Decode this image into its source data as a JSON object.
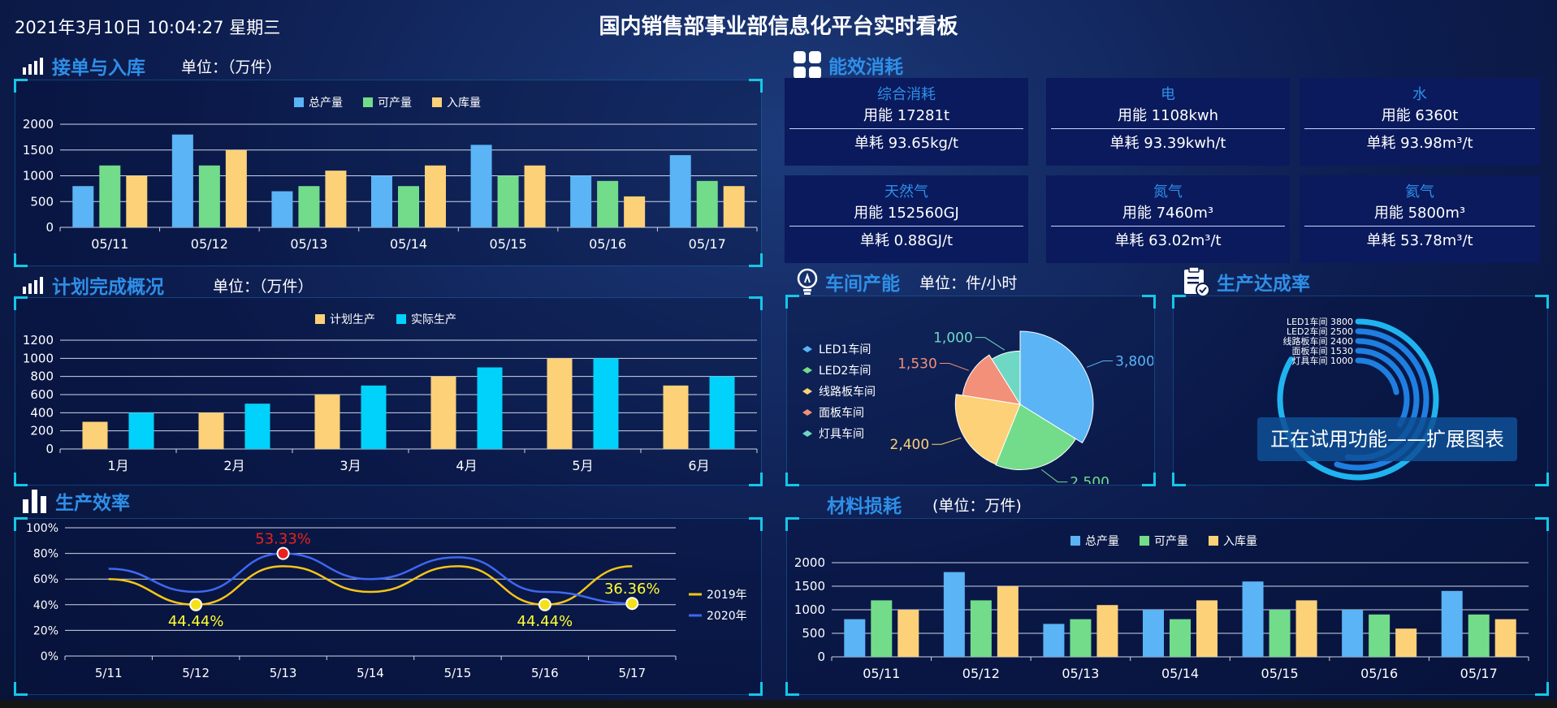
{
  "header": {
    "datetime": "2021年3月10日 10:04:27 星期三",
    "title": "国内销售部事业部信息化平台实时看板"
  },
  "sections": {
    "orders": {
      "title": "接单与入库",
      "unit": "单位：（万件）"
    },
    "energy": {
      "title": "能效消耗"
    },
    "plan": {
      "title": "计划完成概况",
      "unit": "单位：（万件）"
    },
    "workshop": {
      "title": "车间产能",
      "unit": "单位：件/小时"
    },
    "rate": {
      "title": "生产达成率"
    },
    "efficiency": {
      "title": "生产效率"
    },
    "material": {
      "title": "材料损耗",
      "unit": "(单位：万件)"
    }
  },
  "energy_cards": [
    {
      "name": "综合消耗",
      "usage": "用能 17281t",
      "per_unit": "单耗 93.65kg/t"
    },
    {
      "name": "电",
      "usage": "用能 1108kwh",
      "per_unit": "单耗 93.39kwh/t"
    },
    {
      "name": "水",
      "usage": "用能 6360t",
      "per_unit": "单耗 93.98m³/t"
    },
    {
      "name": "天然气",
      "usage": "用能 152560GJ",
      "per_unit": "单耗 0.88GJ/t"
    },
    {
      "name": "氮气",
      "usage": "用能 7460m³",
      "per_unit": "单耗 63.02m³/t"
    },
    {
      "name": "氦气",
      "usage": "用能 5800m³",
      "per_unit": "单耗 53.78m³/t"
    }
  ],
  "overlay": {
    "label": "正在试用功能——扩展图表"
  },
  "chart_data": [
    {
      "id": "orders",
      "type": "bar",
      "categories": [
        "05/11",
        "05/12",
        "05/13",
        "05/14",
        "05/15",
        "05/16",
        "05/17"
      ],
      "series": [
        {
          "name": "总产量",
          "color": "#5ab4f5",
          "values": [
            800,
            1800,
            700,
            1000,
            1600,
            1000,
            1400
          ]
        },
        {
          "name": "可产量",
          "color": "#72dc8a",
          "values": [
            1200,
            1200,
            800,
            800,
            1000,
            900,
            900
          ]
        },
        {
          "name": "入库量",
          "color": "#fcd178",
          "values": [
            1000,
            1500,
            1100,
            1200,
            1200,
            600,
            800
          ]
        }
      ],
      "yticks": [
        "0",
        "500",
        "1000",
        "1500",
        "2000"
      ],
      "ylim": [
        0,
        2000
      ]
    },
    {
      "id": "plan",
      "type": "bar",
      "categories": [
        "1月",
        "2月",
        "3月",
        "4月",
        "5月",
        "6月"
      ],
      "series": [
        {
          "name": "计划生产",
          "color": "#fcd178",
          "values": [
            300,
            400,
            600,
            800,
            1000,
            700
          ]
        },
        {
          "name": "实际生产",
          "color": "#00d2fb",
          "values": [
            400,
            500,
            700,
            900,
            1000,
            800
          ]
        }
      ],
      "yticks": [
        "0",
        "200",
        "400",
        "600",
        "800",
        "1000",
        "1200"
      ],
      "ylim": [
        0,
        1200
      ]
    },
    {
      "id": "workshop",
      "type": "pie",
      "labels": [
        "LED1车间",
        "LED2车间",
        "线路板车间",
        "面板车间",
        "灯具车间"
      ],
      "values": [
        3800,
        2500,
        2400,
        1530,
        1000
      ],
      "value_labels": [
        "3,800",
        "2,500",
        "2,400",
        "1,530",
        "1,000"
      ],
      "colors": [
        "#5ab4f5",
        "#72dc8a",
        "#fcd178",
        "#f2907a",
        "#6fd8c4"
      ]
    },
    {
      "id": "rate",
      "type": "radial-bar",
      "labels": [
        "LED1车间 3800",
        "LED2车间 2500",
        "线路板车间 2400",
        "面板车间 1530",
        "灯具车间 1000"
      ],
      "values": [
        3800,
        2500,
        2400,
        1530,
        1000
      ]
    },
    {
      "id": "efficiency",
      "type": "line",
      "x": [
        "5/11",
        "5/12",
        "5/13",
        "5/14",
        "5/15",
        "5/16",
        "5/17"
      ],
      "series": [
        {
          "name": "2019年",
          "color": "#f5c518",
          "values": [
            60,
            40,
            70,
            50,
            70,
            40,
            70
          ]
        },
        {
          "name": "2020年",
          "color": "#3e67f0",
          "values": [
            68,
            50,
            80,
            60,
            77,
            50,
            41
          ]
        }
      ],
      "annotations": [
        {
          "label": "44.44%",
          "x": "5/12",
          "y": 40,
          "color": "#ffff33"
        },
        {
          "label": "53.33%",
          "x": "5/13",
          "y": 80,
          "color": "#e8221c"
        },
        {
          "label": "44.44%",
          "x": "5/16",
          "y": 40,
          "color": "#ffff33"
        },
        {
          "label": "36.36%",
          "x": "5/17",
          "y": 41,
          "color": "#ffff33"
        }
      ],
      "yticks": [
        "0%",
        "20%",
        "40%",
        "60%",
        "80%",
        "100%"
      ],
      "ylim": [
        0,
        100
      ]
    },
    {
      "id": "material",
      "type": "bar",
      "categories": [
        "05/11",
        "05/12",
        "05/13",
        "05/14",
        "05/15",
        "05/16",
        "05/17"
      ],
      "series": [
        {
          "name": "总产量",
          "color": "#5ab4f5",
          "values": [
            800,
            1800,
            700,
            1000,
            1600,
            1000,
            1400
          ]
        },
        {
          "name": "可产量",
          "color": "#72dc8a",
          "values": [
            1200,
            1200,
            800,
            800,
            1000,
            900,
            900
          ]
        },
        {
          "name": "入库量",
          "color": "#fcd178",
          "values": [
            1000,
            1500,
            1100,
            1200,
            1200,
            600,
            800
          ]
        }
      ],
      "yticks": [
        "0",
        "500",
        "1000",
        "1500",
        "2000"
      ],
      "ylim": [
        0,
        2000
      ]
    }
  ]
}
